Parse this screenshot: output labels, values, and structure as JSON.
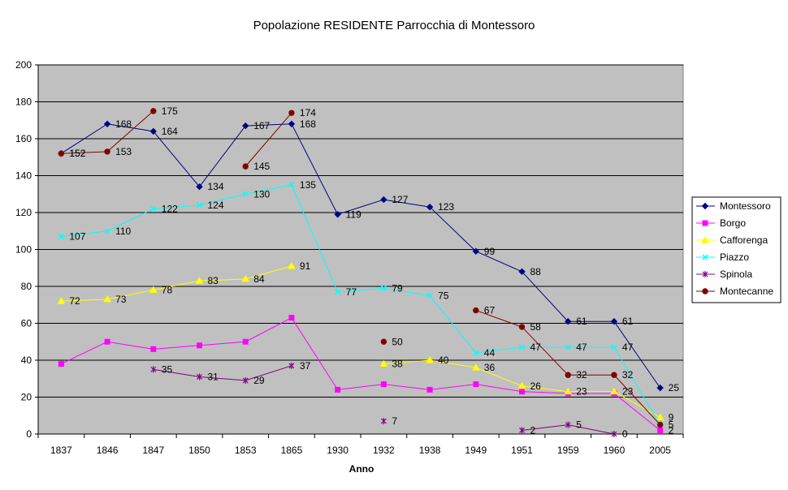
{
  "chart_data": {
    "type": "line",
    "title": "Popolazione RESIDENTE Parrocchia di Montessoro",
    "xlabel": "Anno",
    "ylabel": "",
    "categories": [
      "1837",
      "1846",
      "1847",
      "1850",
      "1853",
      "1865",
      "1930",
      "1932",
      "1938",
      "1949",
      "1951",
      "1959",
      "1960",
      "2005"
    ],
    "ylim": [
      0,
      200
    ],
    "yticks": [
      0,
      20,
      40,
      60,
      80,
      100,
      120,
      140,
      160,
      180,
      200
    ],
    "grid": true,
    "legend_position": "right",
    "series": [
      {
        "name": "Montessoro",
        "color": "#000080",
        "marker": "diamond",
        "values": [
          152,
          168,
          164,
          134,
          167,
          168,
          119,
          127,
          123,
          99,
          88,
          61,
          61,
          25
        ]
      },
      {
        "name": "Borgo",
        "color": "#ff00ff",
        "marker": "square",
        "values": [
          38,
          50,
          46,
          48,
          50,
          63,
          24,
          27,
          24,
          27,
          23,
          22,
          22,
          2
        ],
        "label_values": [
          null,
          null,
          null,
          null,
          null,
          null,
          null,
          null,
          null,
          null,
          null,
          null,
          null,
          2
        ]
      },
      {
        "name": "Cafforenga",
        "color": "#ffff00",
        "marker": "triangle",
        "values": [
          72,
          73,
          78,
          83,
          84,
          91,
          null,
          38,
          40,
          36,
          26,
          23,
          23,
          9
        ],
        "label_values": [
          72,
          73,
          78,
          83,
          84,
          91,
          null,
          38,
          40,
          36,
          26,
          23,
          23,
          9
        ]
      },
      {
        "name": "Piazzo",
        "color": "#00ffff",
        "marker": "x",
        "values": [
          107,
          110,
          122,
          124,
          130,
          135,
          77,
          79,
          75,
          44,
          47,
          47,
          47,
          5
        ],
        "label_values": [
          107,
          110,
          122,
          124,
          130,
          135,
          77,
          79,
          75,
          44,
          47,
          47,
          47,
          5
        ]
      },
      {
        "name": "Spinola",
        "color": "#800080",
        "marker": "star",
        "values": [
          null,
          null,
          35,
          31,
          29,
          37,
          null,
          7,
          null,
          null,
          2,
          5,
          0,
          null
        ],
        "label_values": [
          null,
          null,
          35,
          31,
          29,
          37,
          null,
          7,
          null,
          null,
          2,
          5,
          0,
          null
        ]
      },
      {
        "name": "Montecanne",
        "color": "#800000",
        "marker": "circle",
        "values": [
          152,
          153,
          175,
          null,
          145,
          174,
          null,
          50,
          null,
          67,
          58,
          32,
          32,
          5
        ],
        "label_values": [
          152,
          153,
          175,
          null,
          145,
          174,
          null,
          50,
          null,
          67,
          58,
          32,
          32,
          null
        ]
      }
    ],
    "plot_background": "#c0c0c0"
  }
}
